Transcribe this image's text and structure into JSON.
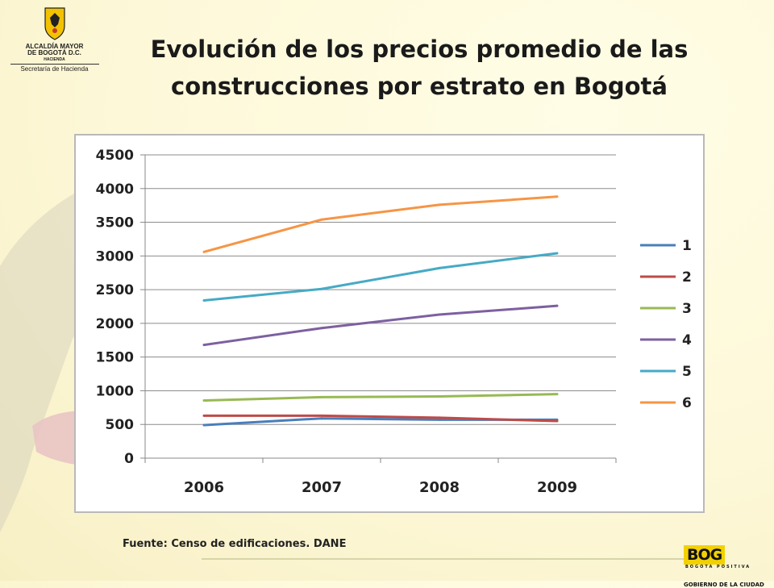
{
  "logo": {
    "line1": "ALCALDÍA MAYOR",
    "line2": "DE BOGOTÁ D.C.",
    "line3": "HACIENDA",
    "line4": "Secretaría de Hacienda"
  },
  "title": {
    "line1": "Evolución de los precios promedio de las",
    "line2": "construcciones por estrato en Bogotá"
  },
  "source": "Fuente: Censo de edificaciones. DANE",
  "footer_logo": {
    "brand": "BOG",
    "tagline": "BOGOTA POSITIVA",
    "subtitle": "GOBIERNO DE LA CIUDAD"
  },
  "chart_data": {
    "type": "line",
    "categories": [
      "2006",
      "2007",
      "2008",
      "2009"
    ],
    "ylim": [
      0,
      4500
    ],
    "yticks": [
      "0",
      "500",
      "1000",
      "1500",
      "2000",
      "2500",
      "3000",
      "3500",
      "4000",
      "4500"
    ],
    "grid": true,
    "legend_position": "right",
    "series": [
      {
        "name": "1",
        "color": "#4a7ebb",
        "values": [
          490,
          590,
          570,
          570
        ]
      },
      {
        "name": "2",
        "color": "#be4b48",
        "values": [
          630,
          630,
          600,
          550
        ]
      },
      {
        "name": "3",
        "color": "#98b954",
        "values": [
          855,
          905,
          915,
          950
        ]
      },
      {
        "name": "4",
        "color": "#7d60a0",
        "values": [
          1680,
          1930,
          2130,
          2260
        ]
      },
      {
        "name": "5",
        "color": "#46aac5",
        "values": [
          2340,
          2510,
          2820,
          3040
        ]
      },
      {
        "name": "6",
        "color": "#f69545",
        "values": [
          3060,
          3540,
          3760,
          3880
        ]
      }
    ]
  }
}
